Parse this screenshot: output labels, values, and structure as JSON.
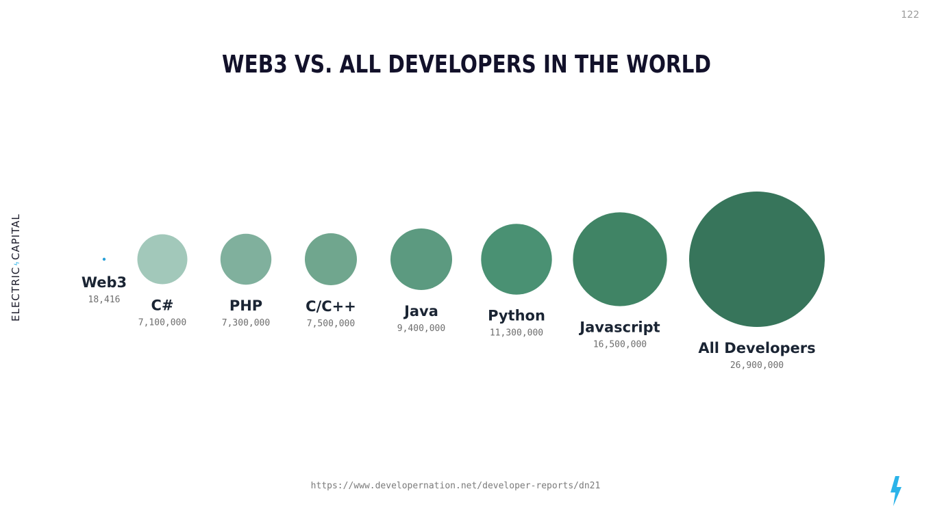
{
  "page_number": "122",
  "brand": {
    "left": "ELECTRIC",
    "right": "CAPITAL"
  },
  "source_url": "https://www.developernation.net/developer-reports/dn21",
  "chart_data": {
    "type": "bubble",
    "title": "WEB3 VS. ALL DEVELOPERS IN THE WORLD",
    "categories": [
      "Web3",
      "C#",
      "PHP",
      "C/C++",
      "Java",
      "Python",
      "Javascript",
      "All Developers"
    ],
    "values": [
      18416,
      7100000,
      7300000,
      7500000,
      9400000,
      11300000,
      16500000,
      26900000
    ],
    "value_labels": [
      "18,416",
      "7,100,000",
      "7,300,000",
      "7,500,000",
      "9,400,000",
      "11,300,000",
      "16,500,000",
      "26,900,000"
    ],
    "colors": [
      "#2aa0d8",
      "#a2c8ba",
      "#80b09d",
      "#70a68e",
      "#5c9a80",
      "#4a9173",
      "#408465",
      "#37755b"
    ]
  }
}
